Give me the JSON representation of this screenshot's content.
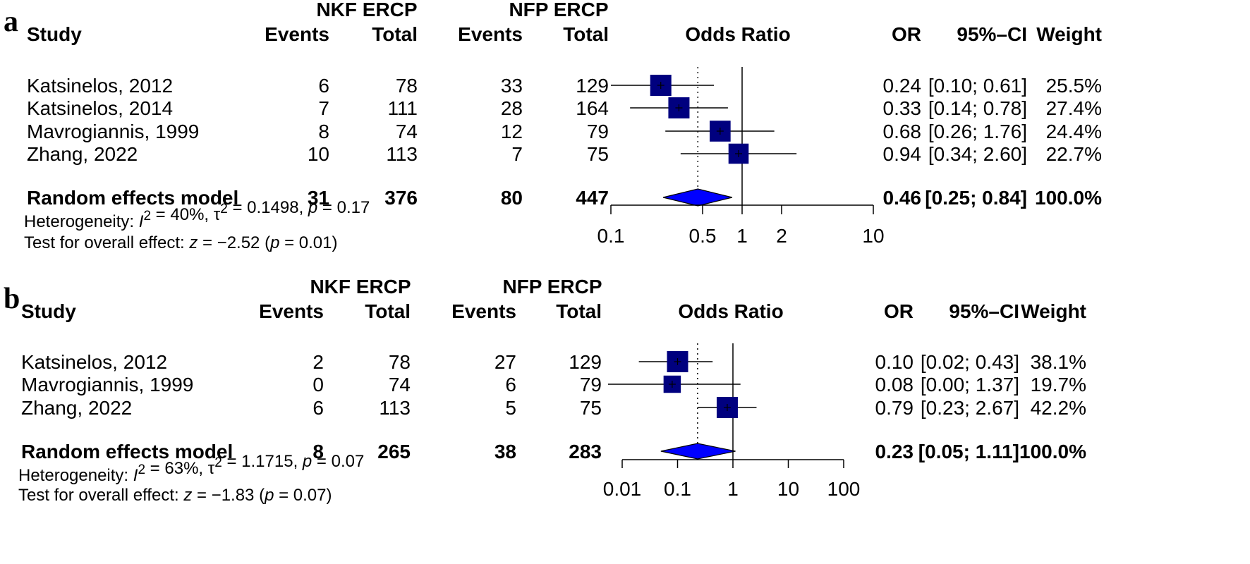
{
  "colors": {
    "square": "#00007f",
    "diamond": "#0000ff",
    "line": "#000000",
    "text": "#000000"
  },
  "chart_data": [
    {
      "type": "forest",
      "panel_label": "a",
      "group1_label": "NKF ERCP",
      "group2_label": "NFP ERCP",
      "columns": {
        "study": "Study",
        "events": "Events",
        "total": "Total",
        "plot": "Odds Ratio",
        "or": "OR",
        "ci": "95%–CI",
        "weight": "Weight"
      },
      "x_scale": "log",
      "xlim": [
        0.1,
        10
      ],
      "xticks": [
        "0.1",
        "0.5",
        "1",
        "2",
        "10"
      ],
      "pooled_reference_line": 0.46,
      "studies": [
        {
          "name": "Katsinelos, 2012",
          "e1": "6",
          "n1": "78",
          "e2": "33",
          "n2": "129",
          "or": 0.24,
          "lo": 0.1,
          "hi": 0.61,
          "or_text": "0.24",
          "ci_text": "[0.10; 0.61]",
          "weight_text": "25.5%",
          "weight": 25.5
        },
        {
          "name": "Katsinelos, 2014",
          "e1": "7",
          "n1": "111",
          "e2": "28",
          "n2": "164",
          "or": 0.33,
          "lo": 0.14,
          "hi": 0.78,
          "or_text": "0.33",
          "ci_text": "[0.14; 0.78]",
          "weight_text": "27.4%",
          "weight": 27.4
        },
        {
          "name": "Mavrogiannis, 1999",
          "e1": "8",
          "n1": "74",
          "e2": "12",
          "n2": "79",
          "or": 0.68,
          "lo": 0.26,
          "hi": 1.76,
          "or_text": "0.68",
          "ci_text": "[0.26; 1.76]",
          "weight_text": "24.4%",
          "weight": 24.4
        },
        {
          "name": "Zhang, 2022",
          "e1": "10",
          "n1": "113",
          "e2": "7",
          "n2": "75",
          "or": 0.94,
          "lo": 0.34,
          "hi": 2.6,
          "or_text": "0.94",
          "ci_text": "[0.34; 2.60]",
          "weight_text": "22.7%",
          "weight": 22.7
        }
      ],
      "pooled": {
        "name": "Random effects model",
        "e1": "31",
        "n1": "376",
        "e2": "80",
        "n2": "447",
        "or": 0.46,
        "lo": 0.25,
        "hi": 0.84,
        "or_text": "0.46",
        "ci_text": "[0.25; 0.84]",
        "weight_text": "100.0%"
      },
      "heterogeneity": {
        "prefix": "Heterogeneity: ",
        "i2_symbol": "I",
        "i2_value": " = 40%, ",
        "tau2_symbol": "τ",
        "tau2_value": " = 0.1498, ",
        "p_symbol": "p",
        "p_value": " = 0.17"
      },
      "overall_test": {
        "prefix": "Test for overall effect: ",
        "z_symbol": "z",
        "z_value": " = −2.52 (",
        "p_symbol": "p",
        "p_value": " = 0.01)"
      }
    },
    {
      "type": "forest",
      "panel_label": "b",
      "group1_label": "NKF ERCP",
      "group2_label": "NFP ERCP",
      "columns": {
        "study": "Study",
        "events": "Events",
        "total": "Total",
        "plot": "Odds Ratio",
        "or": "OR",
        "ci": "95%–CI",
        "weight": "Weight"
      },
      "x_scale": "log",
      "xlim": [
        0.01,
        100
      ],
      "xticks": [
        "0.01",
        "0.1",
        "1",
        "10",
        "100"
      ],
      "pooled_reference_line": 0.23,
      "studies": [
        {
          "name": "Katsinelos, 2012",
          "e1": "2",
          "n1": "78",
          "e2": "27",
          "n2": "129",
          "or": 0.1,
          "lo": 0.02,
          "hi": 0.43,
          "or_text": "0.10",
          "ci_text": "[0.02; 0.43]",
          "weight_text": "38.1%",
          "weight": 38.1
        },
        {
          "name": "Mavrogiannis, 1999",
          "e1": "0",
          "n1": "74",
          "e2": "6",
          "n2": "79",
          "or": 0.08,
          "lo": 0.0,
          "hi": 1.37,
          "or_text": "0.08",
          "ci_text": "[0.00; 1.37]",
          "weight_text": "19.7%",
          "weight": 19.7
        },
        {
          "name": "Zhang, 2022",
          "e1": "6",
          "n1": "113",
          "e2": "5",
          "n2": "75",
          "or": 0.79,
          "lo": 0.23,
          "hi": 2.67,
          "or_text": "0.79",
          "ci_text": "[0.23; 2.67]",
          "weight_text": "42.2%",
          "weight": 42.2
        }
      ],
      "pooled": {
        "name": "Random effects model",
        "e1": "8",
        "n1": "265",
        "e2": "38",
        "n2": "283",
        "or": 0.23,
        "lo": 0.05,
        "hi": 1.11,
        "or_text": "0.23",
        "ci_text": "[0.05; 1.11]",
        "weight_text": "100.0%"
      },
      "heterogeneity": {
        "prefix": "Heterogeneity: ",
        "i2_symbol": "I",
        "i2_value": " = 63%, ",
        "tau2_symbol": "τ",
        "tau2_value": " = 1.1715, ",
        "p_symbol": "p",
        "p_value": " = 0.07"
      },
      "overall_test": {
        "prefix": "Test for overall effect: ",
        "z_symbol": "z",
        "z_value": " = −1.83 (",
        "p_symbol": "p",
        "p_value": " = 0.07)"
      }
    }
  ]
}
